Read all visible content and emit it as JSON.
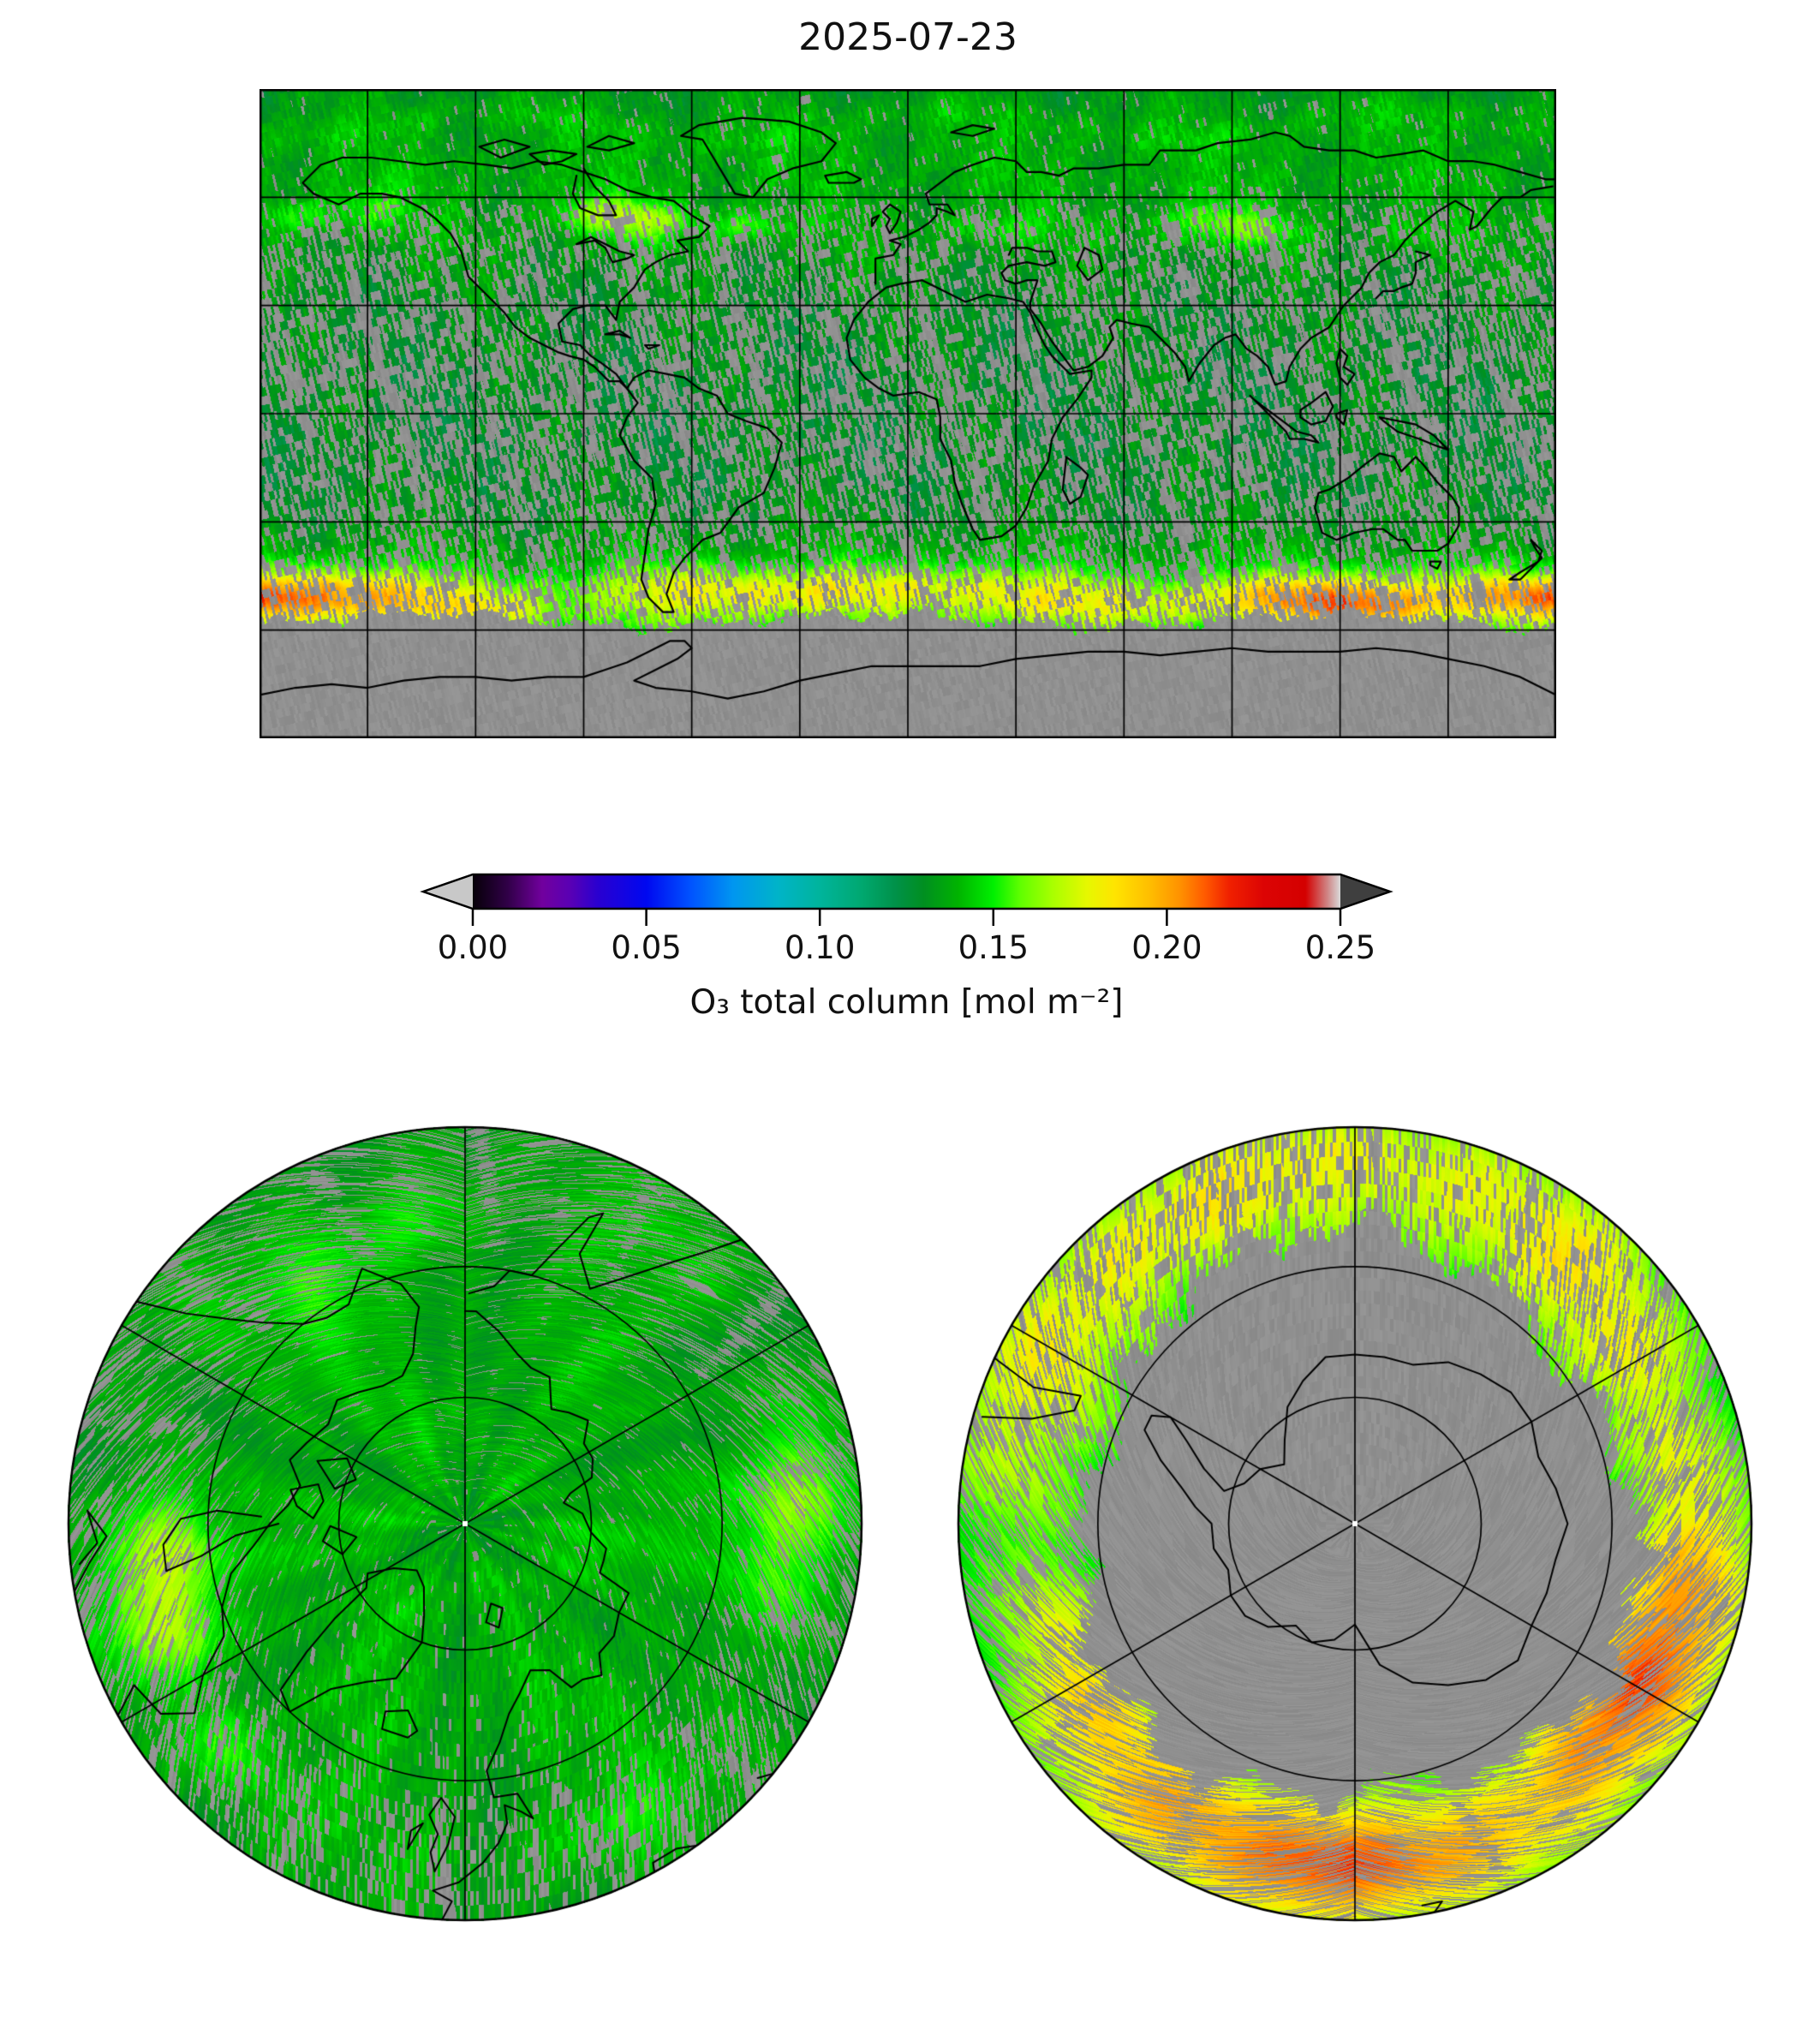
{
  "title": "2025-07-23",
  "colorbar": {
    "label": "O₃ total column [mol m⁻²]",
    "ticks": [
      "0.00",
      "0.05",
      "0.10",
      "0.15",
      "0.20",
      "0.25"
    ],
    "tick_values": [
      0.0,
      0.05,
      0.1,
      0.15,
      0.2,
      0.25
    ],
    "vmin": 0.0,
    "vmax": 0.25,
    "extend": "both",
    "under_arrow_color": "#c8c8c8",
    "over_arrow_color": "#3f3f3f",
    "outline_color": "#000000",
    "stops": [
      [
        0.0,
        "#060008"
      ],
      [
        0.01,
        "#300047"
      ],
      [
        0.02,
        "#71009e"
      ],
      [
        0.028,
        "#5a00b4"
      ],
      [
        0.036,
        "#2a00d0"
      ],
      [
        0.05,
        "#0008f0"
      ],
      [
        0.063,
        "#0054ff"
      ],
      [
        0.075,
        "#0096f0"
      ],
      [
        0.088,
        "#00b4c8"
      ],
      [
        0.1,
        "#00b49c"
      ],
      [
        0.112,
        "#00a870"
      ],
      [
        0.122,
        "#009148"
      ],
      [
        0.13,
        "#008f20"
      ],
      [
        0.14,
        "#00b400"
      ],
      [
        0.15,
        "#00f000"
      ],
      [
        0.158,
        "#62ff00"
      ],
      [
        0.167,
        "#a8ff00"
      ],
      [
        0.177,
        "#e6f800"
      ],
      [
        0.185,
        "#ffe400"
      ],
      [
        0.195,
        "#ffbe00"
      ],
      [
        0.204,
        "#ff9000"
      ],
      [
        0.211,
        "#ff5a00"
      ],
      [
        0.218,
        "#f02000"
      ],
      [
        0.228,
        "#dc0404"
      ],
      [
        0.24,
        "#d40000"
      ],
      [
        0.2465,
        "#cf8a8a"
      ],
      [
        0.25,
        "#dadada"
      ]
    ]
  },
  "chart_data": [
    {
      "type": "heatmap",
      "panel": "global-map",
      "title": "2025-07-23",
      "projection": "equirectangular",
      "variable": "O3 total column",
      "units": "mol m^-2",
      "lon_range": [
        -180,
        180
      ],
      "lat_range": [
        -90,
        90
      ],
      "gridline_spacing_deg": 30,
      "value_range_shown": [
        0.0,
        0.25
      ],
      "no_data_color": "#8f8f8f",
      "no_data_regions": [
        "Antarctic region poleward of ~58-62S (polar night, gray)",
        "between-orbit swath gaps at low and mid latitudes (gray streaks)"
      ],
      "latitude_profile": {
        "lats": [
          -90,
          -63,
          -60,
          -57,
          -53,
          -48,
          -44,
          -40,
          -34,
          -28,
          -20,
          -10,
          0,
          10,
          20,
          30,
          38,
          45,
          52,
          58,
          64,
          72,
          80,
          90
        ],
        "values": [
          0.15,
          0.15,
          0.152,
          0.156,
          0.158,
          0.154,
          0.147,
          0.141,
          0.136,
          0.133,
          0.131,
          0.13,
          0.13,
          0.13,
          0.131,
          0.132,
          0.134,
          0.136,
          0.139,
          0.137,
          0.139,
          0.138,
          0.136,
          0.133
        ]
      },
      "enhancements": [
        {
          "lon": -162,
          "lat": -50,
          "amp": 0.04,
          "sx": 16,
          "sy": 5
        },
        {
          "lon": -140,
          "lat": -52,
          "amp": 0.022,
          "sx": 14,
          "sy": 5
        },
        {
          "lon": -115,
          "lat": -54,
          "amp": 0.018,
          "sx": 12,
          "sy": 4
        },
        {
          "lon": -60,
          "lat": -48,
          "amp": 0.022,
          "sx": 18,
          "sy": 5
        },
        {
          "lon": -30,
          "lat": -50,
          "amp": 0.018,
          "sx": 14,
          "sy": 4
        },
        {
          "lon": 0,
          "lat": -47,
          "amp": 0.02,
          "sx": 20,
          "sy": 4
        },
        {
          "lon": 35,
          "lat": -51,
          "amp": 0.022,
          "sx": 18,
          "sy": 5
        },
        {
          "lon": 70,
          "lat": -53,
          "amp": 0.015,
          "sx": 14,
          "sy": 4
        },
        {
          "lon": 95,
          "lat": -50,
          "amp": 0.018,
          "sx": 12,
          "sy": 4
        },
        {
          "lon": 116,
          "lat": -52,
          "amp": 0.042,
          "sx": 14,
          "sy": 5
        },
        {
          "lon": 135,
          "lat": -53,
          "amp": 0.03,
          "sx": 12,
          "sy": 5
        },
        {
          "lon": 160,
          "lat": -50,
          "amp": 0.025,
          "sx": 12,
          "sy": 4
        },
        {
          "lon": 178,
          "lat": -51,
          "amp": 0.03,
          "sx": 10,
          "sy": 4
        },
        {
          "lon": -75,
          "lat": 54,
          "amp": 0.028,
          "sx": 10,
          "sy": 4
        },
        {
          "lon": -90,
          "lat": 56,
          "amp": 0.014,
          "sx": 8,
          "sy": 3
        },
        {
          "lon": -150,
          "lat": 57,
          "amp": 0.014,
          "sx": 9,
          "sy": 4
        },
        {
          "lon": -170,
          "lat": 55,
          "amp": 0.012,
          "sx": 8,
          "sy": 3
        },
        {
          "lon": -45,
          "lat": 52,
          "amp": 0.016,
          "sx": 8,
          "sy": 3
        },
        {
          "lon": 25,
          "lat": 51,
          "amp": 0.01,
          "sx": 10,
          "sy": 3
        },
        {
          "lon": 85,
          "lat": 53,
          "amp": 0.018,
          "sx": 12,
          "sy": 4
        },
        {
          "lon": 100,
          "lat": 50,
          "amp": 0.01,
          "sx": 8,
          "sy": 3
        },
        {
          "lon": 140,
          "lat": 49,
          "amp": 0.008,
          "sx": 6,
          "sy": 3
        }
      ]
    },
    {
      "type": "heatmap",
      "panel": "north-polar-map",
      "projection": "north_polar_stereographic",
      "boundary_lat": 45,
      "graticule_lat_circles": [
        60,
        75
      ],
      "meridian_spacing_deg": 60,
      "description": "Arctic view, fully sunlit: smooth darker-green cap near pole (~0.133 mol m^-2), speckled brighter green with yellow patches toward 45-60N, gray between-orbit gaps increasing outward",
      "pole_dot_color": "#ffffff"
    },
    {
      "type": "heatmap",
      "panel": "south-polar-map",
      "projection": "south_polar_stereographic",
      "boundary_lat": -45,
      "graticule_lat_circles": [
        -60,
        -75
      ],
      "meridian_spacing_deg": 60,
      "description": "Antarctic view, polar night: gray no-data disk poleward of ~58S with Antarctica coastline, surrounded by green-yellow annulus (~0.15-0.16 mol m^-2) with orange patch near 110-120E and yellow arcs near 0E and 135-160W",
      "no_data_lat_poleward_of": -58,
      "pole_dot_color": "#ffffff"
    }
  ]
}
